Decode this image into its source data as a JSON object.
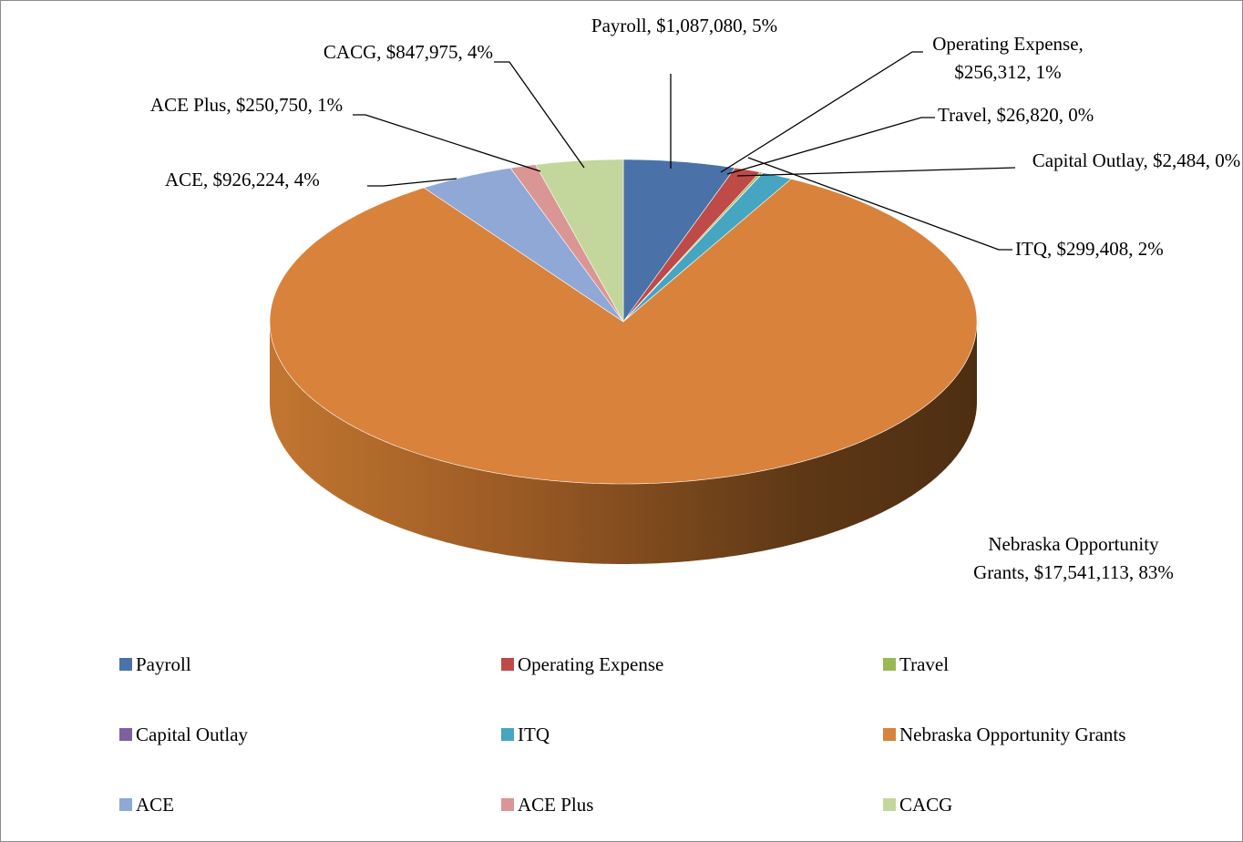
{
  "chart_data": {
    "type": "pie3d",
    "categories": [
      "Payroll",
      "Operating Expense",
      "Travel",
      "Capital Outlay",
      "ITQ",
      "Nebraska Opportunity Grants",
      "ACE",
      "ACE Plus",
      "CACG"
    ],
    "values": [
      1087080,
      256312,
      26820,
      2484,
      299408,
      17541113,
      926224,
      250750,
      847975
    ],
    "value_labels": [
      "Payroll, $1,087,080, 5%",
      "Operating Expense, $256,312, 1%",
      "Travel, $26,820, 0%",
      "Capital Outlay, $2,484, 0%",
      "ITQ, $299,408, 2%",
      "Nebraska Opportunity Grants, $17,541,113, 83%",
      "ACE, $926,224, 4%",
      "ACE Plus, $250,750, 1%",
      "CACG, $847,975, 4%"
    ],
    "colors": [
      "#4a72a8",
      "#be4b48",
      "#98b954",
      "#7d60a0",
      "#46a5c0",
      "#d9823c",
      "#8fa8d6",
      "#d99694",
      "#c3d69b"
    ],
    "legend": "bottom"
  }
}
